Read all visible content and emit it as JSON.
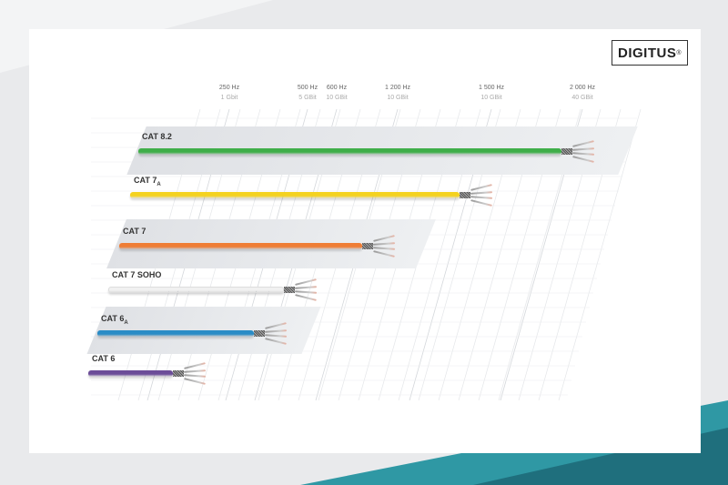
{
  "brand": {
    "name": "DIGITUS",
    "mark": "®"
  },
  "frequencies": [
    {
      "hz": "250 Hz",
      "rate": "1 Gbit"
    },
    {
      "hz": "500 Hz",
      "rate": "5 GBit"
    },
    {
      "hz": "600 Hz",
      "rate": "10 GBit"
    },
    {
      "hz": "1 200 Hz",
      "rate": "10 GBit"
    },
    {
      "hz": "1 500 Hz",
      "rate": "10 GBit"
    },
    {
      "hz": "2 000 Hz",
      "rate": "40 GBit"
    }
  ],
  "cables": [
    {
      "label": "CAT 8.2",
      "sub": "",
      "color": "#3fae49"
    },
    {
      "label": "CAT 7",
      "sub": "A",
      "color": "#f4d21f"
    },
    {
      "label": "CAT 7",
      "sub": "",
      "color": "#ef7d35"
    },
    {
      "label": "CAT 7 SOHO",
      "sub": "",
      "color": "#f1f1f1"
    },
    {
      "label": "CAT 6",
      "sub": "A",
      "color": "#2a8cc6"
    },
    {
      "label": "CAT 6",
      "sub": "",
      "color": "#6c4d98"
    }
  ],
  "colors": {
    "accent": "#2f98a4",
    "background": "#e9eaec"
  }
}
